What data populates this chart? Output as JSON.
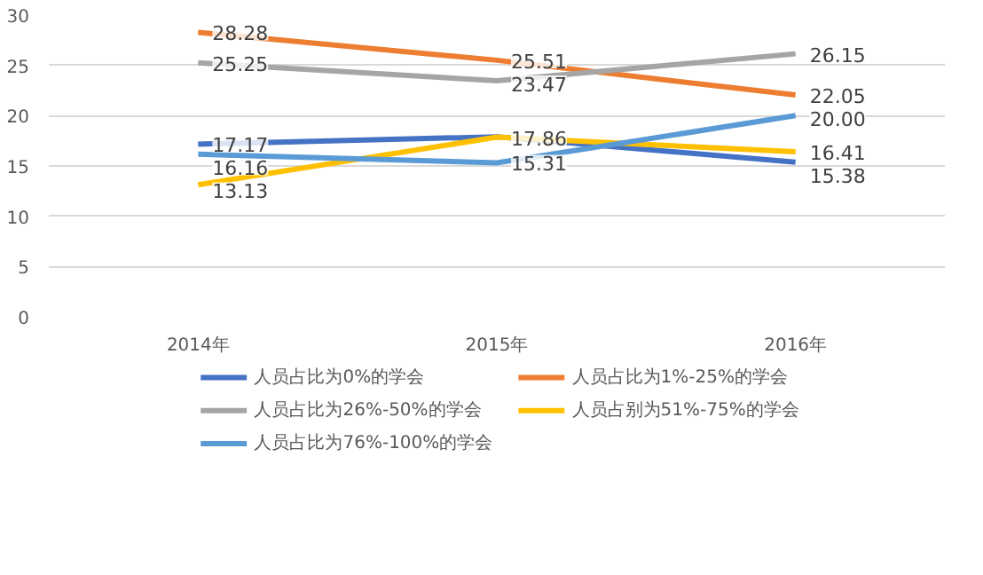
{
  "chart_data": {
    "type": "line",
    "categories": [
      "2014年",
      "2015年",
      "2016年"
    ],
    "series": [
      {
        "name": "人员占比为0%的学会",
        "color": "#4472c4",
        "values": [
          17.17,
          17.9,
          15.38
        ],
        "value_labels": [
          "17.17",
          null,
          "15.38"
        ]
      },
      {
        "name": "人员占比为1%-25%的学会",
        "color": "#ed7d31",
        "values": [
          28.28,
          25.51,
          22.05
        ],
        "value_labels": [
          "28.28",
          "25.51",
          "22.05"
        ]
      },
      {
        "name": "人员占比为26%-50%的学会",
        "color": "#a5a5a5",
        "values": [
          25.25,
          23.47,
          26.15
        ],
        "value_labels": [
          "25.25",
          "23.47",
          "26.15"
        ]
      },
      {
        "name": "人员占别为51%-75%的学会",
        "color": "#ffc000",
        "values": [
          13.13,
          17.86,
          16.41
        ],
        "value_labels": [
          "13.13",
          "17.86",
          "16.41"
        ]
      },
      {
        "name": "人员占比为76%-100%的学会",
        "color": "#5b9bd5",
        "values": [
          16.16,
          15.31,
          20.0
        ],
        "value_labels": [
          "16.16",
          "15.31",
          "20.00"
        ]
      }
    ],
    "ylim": [
      0,
      30
    ],
    "yticks": [
      0,
      5,
      10,
      15,
      20,
      25,
      30
    ],
    "grid": "y",
    "legend": "bottom",
    "marker": "none",
    "line_style": "solid"
  }
}
